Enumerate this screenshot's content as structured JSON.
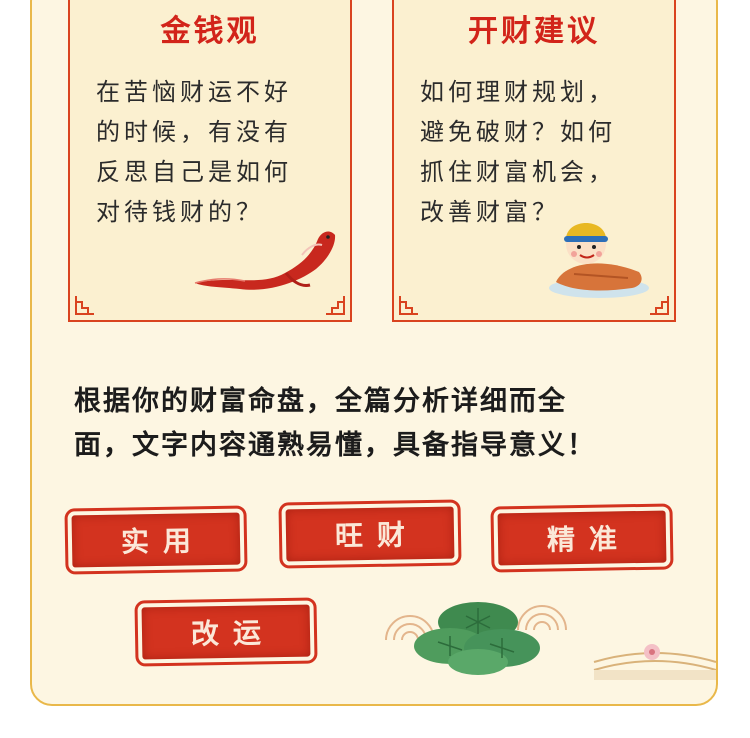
{
  "cards": [
    {
      "title": "金钱观",
      "lines": [
        "在苦恼财运不好",
        "的时候，有没有",
        "反思自己是如何",
        "对待钱财的？"
      ],
      "illustration": "koi-fish"
    },
    {
      "title": "开财建议",
      "lines": [
        "如何理财规划，",
        "避免破财？如何",
        "抓住财富机会，",
        "改善财富？"
      ],
      "illustration": "child-on-fish-mascot"
    }
  ],
  "headline": {
    "line1": "根据你的财富命盘，全篇分析详细而全",
    "line2": "面，文字内容通熟易懂，具备指导意义！"
  },
  "stamps": [
    "实用",
    "旺财",
    "精准",
    "改运"
  ],
  "colors": {
    "accent_red": "#d2241a",
    "card_border": "#d9431f",
    "frame_gold": "#e9b84a",
    "background": "#fdf6e2"
  }
}
